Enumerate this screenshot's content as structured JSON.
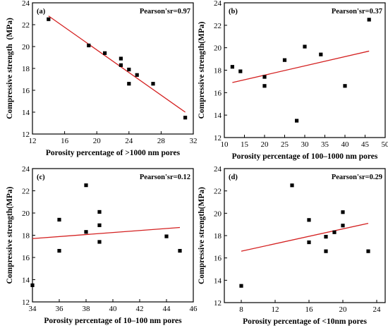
{
  "colors": {
    "fit_line": "#d42020",
    "points": "#000000",
    "axis": "#000000"
  },
  "chart_data": [
    {
      "type": "scatter",
      "panel_label": "(a)",
      "annotation": "Pearson'sr=0.97",
      "xlabel": "Porosity percentage of >1000 nm pores",
      "ylabel": "Compressive strength  (MPa)",
      "xlim": [
        12,
        32
      ],
      "ylim": [
        12,
        24
      ],
      "xticks": [
        12,
        16,
        20,
        24,
        28,
        32
      ],
      "yticks": [
        12,
        14,
        16,
        18,
        20,
        22,
        24
      ],
      "x": [
        14.0,
        19.0,
        21.0,
        23.0,
        23.0,
        24.0,
        24.0,
        25.0,
        27.0,
        31.0
      ],
      "y": [
        22.5,
        20.1,
        19.4,
        18.9,
        18.3,
        17.9,
        16.6,
        17.4,
        16.6,
        13.5
      ],
      "fit_line": {
        "x": [
          14,
          31
        ],
        "y": [
          22.8,
          14.0
        ]
      }
    },
    {
      "type": "scatter",
      "panel_label": "(b)",
      "annotation": "Pearson'sr=0.37",
      "xlabel": "Porosity percentage of 100–1000 nm pores",
      "ylabel": "Compressive strength(MPa)",
      "xlim": [
        10,
        50
      ],
      "ylim": [
        12,
        24
      ],
      "xticks": [
        10,
        15,
        20,
        25,
        30,
        35,
        40,
        45,
        50
      ],
      "yticks": [
        12,
        14,
        16,
        18,
        20,
        22,
        24
      ],
      "x": [
        12.0,
        14.0,
        20.0,
        20.0,
        25.0,
        28.0,
        30.0,
        34.0,
        40.0,
        46.0
      ],
      "y": [
        18.3,
        17.9,
        17.4,
        16.6,
        18.9,
        13.5,
        20.1,
        19.4,
        16.6,
        22.5
      ],
      "fit_line": {
        "x": [
          12,
          46
        ],
        "y": [
          16.9,
          19.7
        ]
      }
    },
    {
      "type": "scatter",
      "panel_label": "(c)",
      "annotation": "Pearson'sr=0.12",
      "xlabel": "Porosity percentage of 10–100 nm pores",
      "ylabel": "Compressive strength(MPa)",
      "xlim": [
        34,
        46
      ],
      "ylim": [
        12,
        24
      ],
      "xticks": [
        34,
        36,
        38,
        40,
        42,
        44,
        46
      ],
      "yticks": [
        12,
        14,
        16,
        18,
        20,
        22,
        24
      ],
      "x": [
        34.0,
        36.0,
        36.0,
        38.0,
        38.0,
        39.0,
        39.0,
        39.0,
        44.0,
        45.0
      ],
      "y": [
        13.5,
        19.4,
        16.6,
        22.5,
        18.3,
        20.1,
        18.9,
        17.4,
        17.9,
        16.6
      ],
      "fit_line": {
        "x": [
          34,
          45
        ],
        "y": [
          17.7,
          18.7
        ]
      }
    },
    {
      "type": "scatter",
      "panel_label": "(d)",
      "annotation": "Pearson'sr=0.29",
      "xlabel": "Porosity percentage of <10nm pores",
      "ylabel": "Compressive strength(MPa)",
      "xlim": [
        6,
        25
      ],
      "ylim": [
        12,
        24
      ],
      "xticks": [
        8,
        12,
        16,
        20,
        24
      ],
      "yticks": [
        12,
        14,
        16,
        18,
        20,
        22,
        24
      ],
      "x": [
        8.0,
        14.0,
        16.0,
        16.0,
        18.0,
        18.0,
        19.0,
        20.0,
        20.0,
        23.0
      ],
      "y": [
        13.5,
        22.5,
        19.4,
        17.4,
        17.9,
        16.6,
        18.3,
        20.1,
        18.9,
        16.6
      ],
      "fit_line": {
        "x": [
          8,
          23
        ],
        "y": [
          16.6,
          19.1
        ]
      }
    }
  ]
}
